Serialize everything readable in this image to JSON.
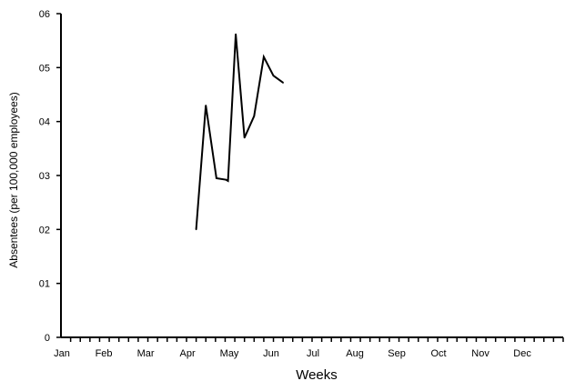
{
  "chart_data": {
    "type": "line",
    "xlabel": "Weeks",
    "ylabel": "Absentees (per 100,000 employees)",
    "y_tick_labels": [
      "0",
      "01",
      "02",
      "03",
      "04",
      "05",
      "06"
    ],
    "ylim": [
      0,
      6
    ],
    "x_month_labels": [
      "Jan",
      "Feb",
      "Mar",
      "Apr",
      "May",
      "Jun",
      "Jul",
      "Aug",
      "Sep",
      "Oct",
      "Nov",
      "Dec"
    ],
    "x_weeks_total": 52,
    "grid": false,
    "legend": "none",
    "series": [
      {
        "x": [
          14.0,
          15.0,
          16.1,
          17.1,
          17.3,
          18.1,
          19.0,
          20.0,
          21.0,
          22.0,
          23.0
        ],
        "y": [
          2.0,
          4.3,
          2.95,
          2.92,
          2.9,
          5.62,
          3.7,
          4.1,
          5.2,
          4.85,
          4.72
        ]
      }
    ]
  }
}
